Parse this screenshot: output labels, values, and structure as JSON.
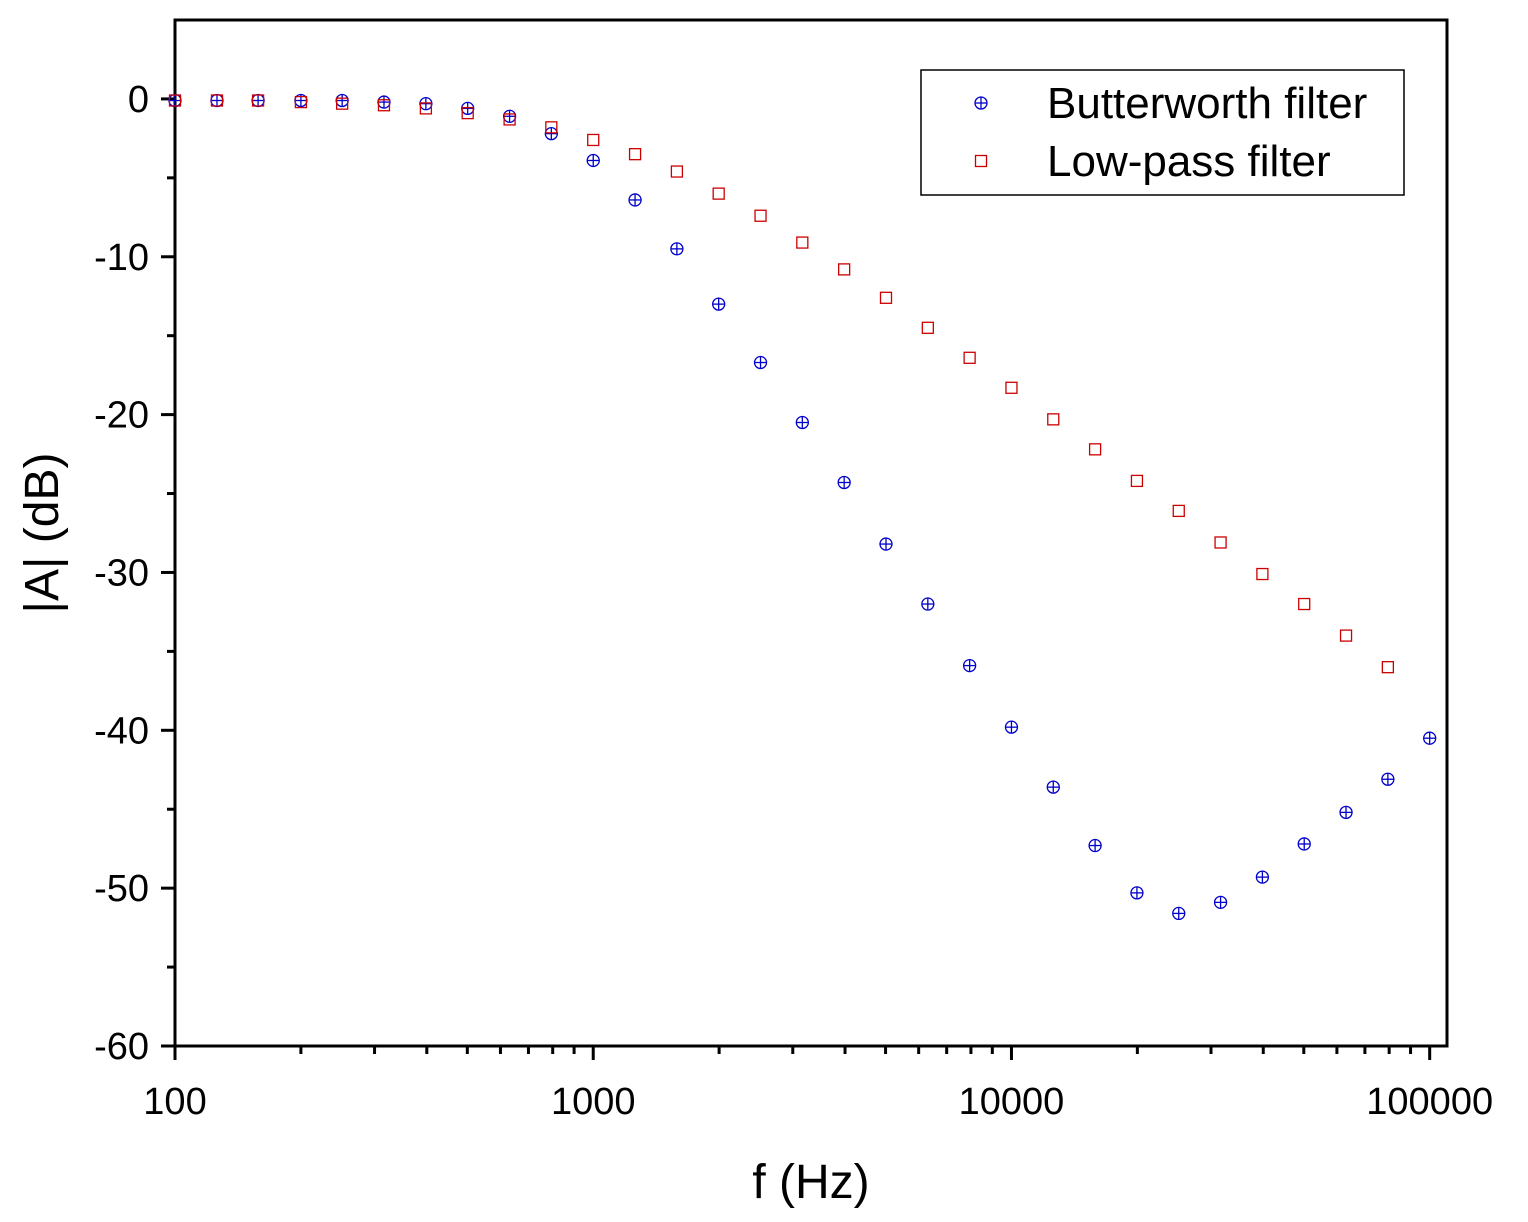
{
  "chart_data": {
    "type": "scatter",
    "title": "",
    "xlabel": "f (Hz)",
    "ylabel": "|A| (dB)",
    "xscale": "log",
    "xlim": [
      100,
      110000
    ],
    "ylim": [
      -60,
      5
    ],
    "x_ticks": [
      100,
      1000,
      10000,
      100000
    ],
    "x_tick_labels": [
      "100",
      "1000",
      "10000",
      "100000"
    ],
    "y_ticks": [
      0,
      -10,
      -20,
      -30,
      -40,
      -50,
      -60
    ],
    "y_tick_labels": [
      "0",
      "-10",
      "-20",
      "-30",
      "-40",
      "-50",
      "-60"
    ],
    "grid": false,
    "legend_position": "top-right",
    "series": [
      {
        "name": "Butterworth filter",
        "marker": "circle-plus",
        "color": "#0000cc",
        "x": [
          100,
          126,
          158,
          200,
          251,
          316,
          398,
          501,
          631,
          794,
          1000,
          1259,
          1585,
          1995,
          2512,
          3162,
          3981,
          5012,
          6310,
          7943,
          10000,
          12589,
          15849,
          19953,
          25119,
          31623,
          39811,
          50119,
          63096,
          79433,
          100000
        ],
        "y": [
          -0.1,
          -0.1,
          -0.1,
          -0.1,
          -0.1,
          -0.2,
          -0.3,
          -0.6,
          -1.1,
          -2.2,
          -3.9,
          -6.4,
          -9.5,
          -13.0,
          -16.7,
          -20.5,
          -24.3,
          -28.2,
          -32.0,
          -35.9,
          -39.8,
          -43.6,
          -47.3,
          -50.3,
          -51.6,
          -50.9,
          -49.3,
          -47.2,
          -45.2,
          -43.1,
          -40.5
        ]
      },
      {
        "name": "Low-pass filter",
        "marker": "square",
        "color": "#cc0000",
        "x": [
          100,
          126,
          158,
          200,
          251,
          316,
          398,
          501,
          631,
          794,
          1000,
          1259,
          1585,
          1995,
          2512,
          3162,
          3981,
          5012,
          6310,
          7943,
          10000,
          12589,
          15849,
          19953,
          25119,
          31623,
          39811,
          50119,
          63096,
          79433
        ],
        "y": [
          -0.1,
          -0.1,
          -0.1,
          -0.2,
          -0.3,
          -0.4,
          -0.6,
          -0.9,
          -1.3,
          -1.8,
          -2.6,
          -3.5,
          -4.6,
          -6.0,
          -7.4,
          -9.1,
          -10.8,
          -12.6,
          -14.5,
          -16.4,
          -18.3,
          -20.3,
          -22.2,
          -24.2,
          -26.1,
          -28.1,
          -30.1,
          -32.0,
          -34.0,
          -36.0
        ]
      }
    ]
  }
}
